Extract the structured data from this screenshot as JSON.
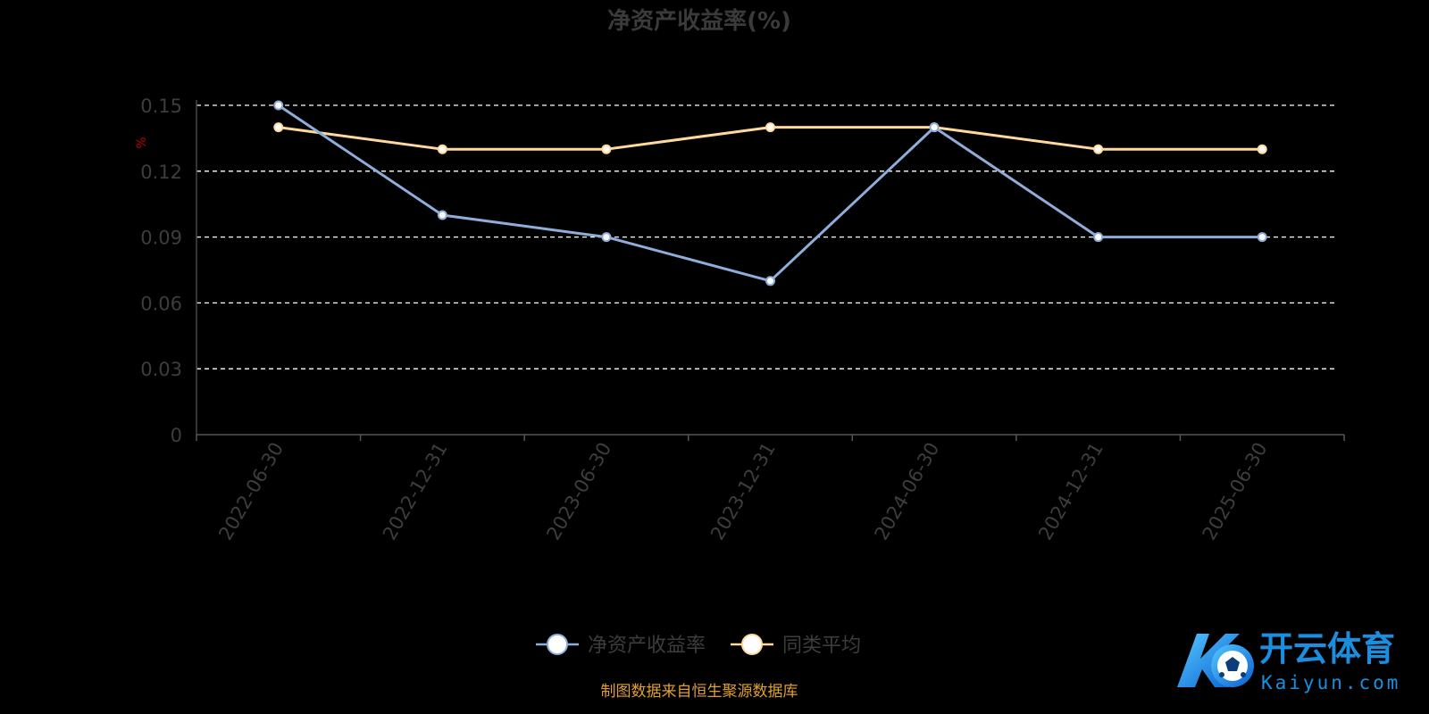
{
  "chart_data": {
    "type": "line",
    "title": "净资产收益率(%)",
    "ylabel": "%",
    "xlabel": "",
    "x": [
      "2022-06-30",
      "2022-12-31",
      "2023-06-30",
      "2023-12-31",
      "2024-06-30",
      "2024-12-31",
      "2025-06-30"
    ],
    "yticks": [
      "0",
      "0.03",
      "0.06",
      "0.09",
      "0.12",
      "0.15"
    ],
    "ylim": [
      0,
      0.15
    ],
    "grid": true,
    "legend_position": "bottom",
    "series": [
      {
        "name": "净资产收益率",
        "color": "#8fadda",
        "values": [
          0.15,
          0.1,
          0.09,
          0.07,
          0.14,
          0.09,
          0.09
        ]
      },
      {
        "name": "同类平均",
        "color": "#ffd89c",
        "values": [
          0.14,
          0.13,
          0.13,
          0.14,
          0.14,
          0.13,
          0.13
        ]
      }
    ],
    "source_note": "制图数据来自恒生聚源数据库"
  },
  "watermark": {
    "brand_cn": "开云体育",
    "brand_en": "Kaiyun.com"
  },
  "colors": {
    "background": "#000000",
    "title": "#3a3a3a",
    "axis_text": "#3d3d3d",
    "axis_unit": "#c00000",
    "grid": "#ffffff",
    "source_note": "#e0a030",
    "brand": "#1a8fe0"
  }
}
